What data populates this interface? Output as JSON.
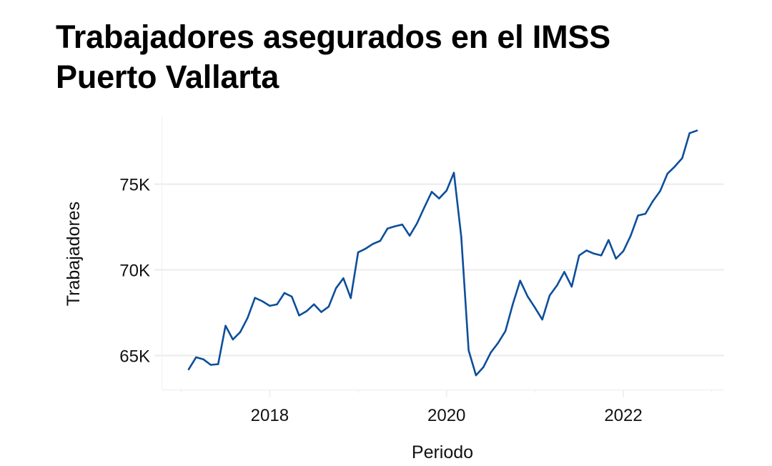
{
  "title": {
    "line1": "Trabajadores asegurados en el IMSS",
    "line2": "Puerto Vallarta"
  },
  "colors": {
    "line": "#0D4E9B",
    "grid": "#EBEBEB",
    "border": "#F0F0F0",
    "text": "#111111"
  },
  "chart_data": {
    "type": "line",
    "title": "Trabajadores asegurados en el IMSS Puerto Vallarta",
    "xlabel": "Periodo",
    "ylabel": "Trabajadores",
    "xlim": [
      2016.78,
      2023.14
    ],
    "ylim": [
      63.0,
      78.9
    ],
    "grid": true,
    "legend": "none",
    "x_ticks": [
      {
        "value": 2018,
        "label": "2018"
      },
      {
        "value": 2020,
        "label": "2020"
      },
      {
        "value": 2022,
        "label": "2022"
      }
    ],
    "x_minor_ticks": [
      2017,
      2019,
      2021,
      2023
    ],
    "y_ticks": [
      {
        "value": 65,
        "label": "65K"
      },
      {
        "value": 70,
        "label": "70K"
      },
      {
        "value": 75,
        "label": "75K"
      }
    ],
    "y_units": "thousands",
    "x_start": 2017.083,
    "x_step": 0.0833333,
    "series": [
      {
        "name": "Trabajadores",
        "values": [
          64.2,
          64.9,
          64.78,
          64.46,
          64.5,
          66.74,
          65.94,
          66.37,
          67.2,
          68.37,
          68.17,
          67.9,
          67.99,
          68.65,
          68.44,
          67.34,
          67.59,
          67.99,
          67.54,
          67.85,
          68.93,
          69.51,
          68.35,
          71.02,
          71.23,
          71.51,
          71.69,
          72.41,
          72.54,
          72.64,
          71.99,
          72.71,
          73.65,
          74.55,
          74.16,
          74.62,
          75.66,
          71.92,
          65.3,
          63.85,
          64.32,
          65.17,
          65.74,
          66.43,
          68.0,
          69.37,
          68.46,
          67.8,
          67.1,
          68.5,
          69.09,
          69.88,
          69.02,
          70.84,
          71.13,
          70.95,
          70.84,
          71.74,
          70.65,
          71.09,
          71.99,
          73.17,
          73.27,
          74.0,
          74.59,
          75.61,
          76.03,
          76.51,
          77.97,
          78.12
        ]
      }
    ]
  }
}
